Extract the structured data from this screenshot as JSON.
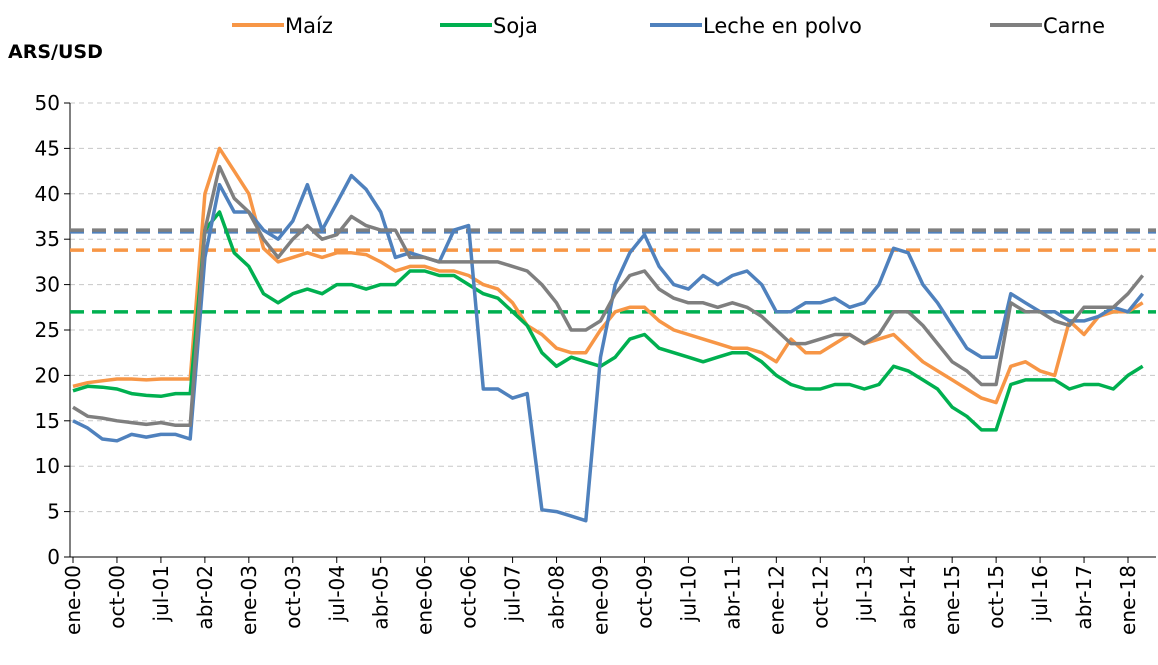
{
  "chart_data": {
    "type": "line",
    "y_axis_label": "ARS/USD",
    "categories": [
      "ene-00",
      null,
      null,
      "oct-00",
      null,
      null,
      "jul-01",
      null,
      null,
      "abr-02",
      null,
      null,
      "ene-03",
      null,
      null,
      "oct-03",
      null,
      null,
      "jul-04",
      null,
      null,
      "abr-05",
      null,
      null,
      "ene-06",
      null,
      null,
      "oct-06",
      null,
      null,
      "jul-07",
      null,
      null,
      "abr-08",
      null,
      null,
      "ene-09",
      null,
      null,
      "oct-09",
      null,
      null,
      "jul-10",
      null,
      null,
      "abr-11",
      null,
      null,
      "ene-12",
      null,
      null,
      "oct-12",
      null,
      null,
      "jul-13",
      null,
      null,
      "abr-14",
      null,
      null,
      "ene-15",
      null,
      null,
      "oct-15",
      null,
      null,
      "jul-16",
      null,
      null,
      "abr-17",
      null,
      null,
      "ene-18",
      null
    ],
    "series": [
      {
        "name": "Maíz",
        "color": "#f79646",
        "average": 33.8,
        "values": [
          18.8,
          19.2,
          19.4,
          19.6,
          19.6,
          19.5,
          19.6,
          19.6,
          19.6,
          40,
          45,
          42.5,
          40,
          34,
          32.5,
          33,
          33.5,
          33,
          33.5,
          33.5,
          33.3,
          32.5,
          31.5,
          32,
          32,
          31.5,
          31.5,
          31,
          30,
          29.5,
          28,
          25.5,
          24.5,
          23,
          22.5,
          22.5,
          25,
          27,
          27.5,
          27.5,
          26,
          25,
          24.5,
          24,
          23.5,
          23,
          23,
          22.5,
          21.5,
          24,
          22.5,
          22.5,
          23.5,
          24.5,
          23.5,
          24,
          24.5,
          23,
          21.5,
          20.5,
          19.5,
          18.5,
          17.5,
          17,
          21,
          21.5,
          20.5,
          20,
          26,
          24.5,
          26.5,
          27,
          27,
          28
        ]
      },
      {
        "name": "Soja",
        "color": "#00b050",
        "average": 27,
        "values": [
          18.3,
          18.8,
          18.7,
          18.5,
          18,
          17.8,
          17.7,
          18,
          18,
          36,
          38,
          33.5,
          32,
          29,
          28,
          29,
          29.5,
          29,
          30,
          30,
          29.5,
          30,
          30,
          31.5,
          31.5,
          31,
          31,
          30,
          29,
          28.5,
          27,
          25.5,
          22.5,
          21,
          22,
          21.5,
          21,
          22,
          24,
          24.5,
          23,
          22.5,
          22,
          21.5,
          22,
          22.5,
          22.5,
          21.5,
          20,
          19,
          18.5,
          18.5,
          19,
          19,
          18.5,
          19,
          21,
          20.5,
          19.5,
          18.5,
          16.5,
          15.5,
          14,
          14,
          19,
          19.5,
          19.5,
          19.5,
          18.5,
          19,
          19,
          18.5,
          20,
          21
        ]
      },
      {
        "name": "Leche en polvo",
        "color": "#4f81bd",
        "average": 35.8,
        "values": [
          15,
          14.2,
          13,
          12.8,
          13.5,
          13.2,
          13.5,
          13.5,
          13,
          33,
          41,
          38,
          38,
          36,
          35,
          37,
          41,
          36,
          39,
          42,
          40.5,
          38,
          33,
          33.5,
          33,
          32.5,
          36,
          36.5,
          18.5,
          18.5,
          17.5,
          18,
          5.2,
          5,
          4.5,
          4,
          22,
          30,
          33.5,
          35.5,
          32,
          30,
          29.5,
          31,
          30,
          31,
          31.5,
          30,
          27,
          27,
          28,
          28,
          28.5,
          27.5,
          28,
          30,
          34,
          33.5,
          30,
          28,
          25.5,
          23,
          22,
          22,
          29,
          28,
          27,
          27,
          26,
          26,
          26.5,
          27.5,
          27,
          29
        ]
      },
      {
        "name": "Carne",
        "color": "#7f7f7f",
        "average": 36,
        "values": [
          16.5,
          15.5,
          15.3,
          15,
          14.8,
          14.6,
          14.8,
          14.5,
          14.5,
          36,
          43,
          39.5,
          38,
          35,
          33,
          35,
          36.5,
          35,
          35.5,
          37.5,
          36.5,
          36,
          36,
          33,
          33,
          32.5,
          32.5,
          32.5,
          32.5,
          32.5,
          32,
          31.5,
          30,
          28,
          25,
          25,
          26,
          29,
          31,
          31.5,
          29.5,
          28.5,
          28,
          28,
          27.5,
          28,
          27.5,
          26.5,
          25,
          23.5,
          23.5,
          24,
          24.5,
          24.5,
          23.5,
          24.5,
          27,
          27,
          25.5,
          23.5,
          21.5,
          20.5,
          19,
          19,
          28,
          27,
          27,
          26,
          25.5,
          27.5,
          27.5,
          27.5,
          29,
          31
        ]
      }
    ],
    "ylim": [
      0,
      50
    ],
    "yticks": [
      0,
      5,
      10,
      15,
      20,
      25,
      30,
      35,
      40,
      45,
      50
    ],
    "grid": true
  }
}
